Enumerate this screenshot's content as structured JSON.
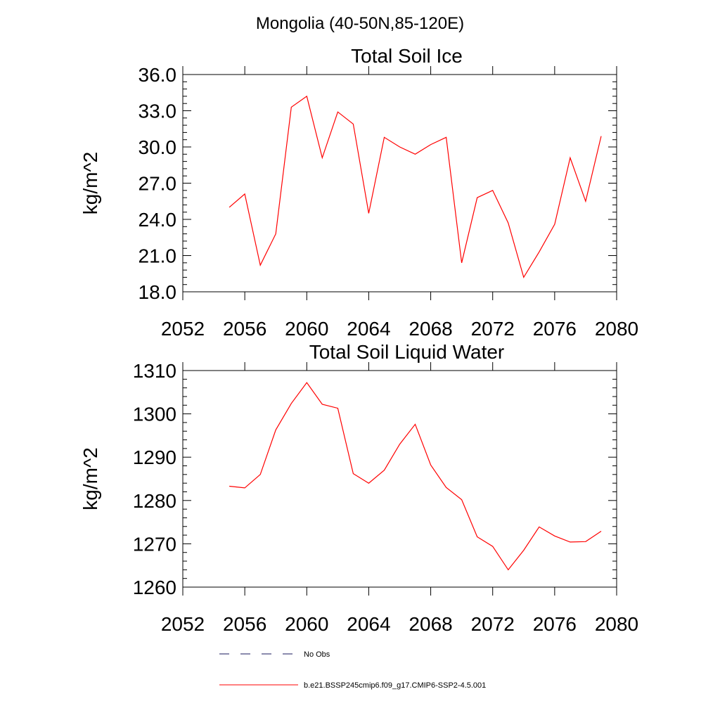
{
  "figure_title": "Mongolia (40-50N,85-120E)",
  "chart_data": [
    {
      "type": "line",
      "title": "Total Soil Ice",
      "xlabel": "",
      "ylabel": "kg/m^2",
      "xlim": [
        2052,
        2080
      ],
      "ylim": [
        18.0,
        36.0
      ],
      "xticks": [
        2052,
        2056,
        2060,
        2064,
        2068,
        2072,
        2076,
        2080
      ],
      "xtick_labels": [
        "2052",
        "2056",
        "2060",
        "2064",
        "2068",
        "2072",
        "2076",
        "2080"
      ],
      "yticks": [
        18,
        21,
        24,
        27,
        30,
        33,
        36
      ],
      "ytick_labels": [
        "18.0",
        "21.0",
        "24.0",
        "27.0",
        "30.0",
        "33.0",
        "36.0"
      ],
      "grid": false,
      "series": [
        {
          "name": "b.e21.BSSP245cmip6.f09_g17.CMIP6-SSP2-4.5.001",
          "color": "#ff0000",
          "x": [
            2055,
            2056,
            2057,
            2058,
            2059,
            2060,
            2061,
            2062,
            2063,
            2064,
            2065,
            2066,
            2067,
            2068,
            2069,
            2070,
            2071,
            2072,
            2073,
            2074,
            2075,
            2076,
            2077,
            2078,
            2079
          ],
          "y": [
            25.0,
            26.1,
            20.2,
            22.8,
            33.3,
            34.2,
            29.1,
            32.9,
            31.9,
            24.5,
            30.8,
            30.0,
            29.4,
            30.2,
            30.8,
            20.4,
            25.8,
            26.4,
            23.7,
            19.2,
            21.3,
            23.6,
            29.1,
            25.5,
            30.9
          ]
        }
      ]
    },
    {
      "type": "line",
      "title": "Total Soil Liquid Water",
      "xlabel": "",
      "ylabel": "kg/m^2",
      "xlim": [
        2052,
        2080
      ],
      "ylim": [
        1260,
        1310
      ],
      "xticks": [
        2052,
        2056,
        2060,
        2064,
        2068,
        2072,
        2076,
        2080
      ],
      "xtick_labels": [
        "2052",
        "2056",
        "2060",
        "2064",
        "2068",
        "2072",
        "2076",
        "2080"
      ],
      "yticks": [
        1260,
        1270,
        1280,
        1290,
        1300,
        1310
      ],
      "ytick_labels": [
        "1260",
        "1270",
        "1280",
        "1290",
        "1300",
        "1310"
      ],
      "grid": false,
      "series": [
        {
          "name": "b.e21.BSSP245cmip6.f09_g17.CMIP6-SSP2-4.5.001",
          "color": "#ff0000",
          "x": [
            2055,
            2056,
            2057,
            2058,
            2059,
            2060,
            2061,
            2062,
            2063,
            2064,
            2065,
            2066,
            2067,
            2068,
            2069,
            2070,
            2071,
            2072,
            2073,
            2074,
            2075,
            2076,
            2077,
            2078,
            2079
          ],
          "y": [
            1283.3,
            1282.9,
            1286.0,
            1296.3,
            1302.4,
            1307.2,
            1302.2,
            1301.3,
            1286.2,
            1284.0,
            1287.0,
            1293.0,
            1297.6,
            1288.2,
            1283.0,
            1280.2,
            1271.6,
            1269.4,
            1264.0,
            1268.5,
            1273.9,
            1271.8,
            1270.4,
            1270.5,
            1272.9
          ]
        }
      ]
    }
  ],
  "legend": {
    "placement": "bottom",
    "items": [
      {
        "label": "No Obs",
        "style": "dashed",
        "color": "#1a1a5e"
      },
      {
        "label": "b.e21.BSSP245cmip6.f09_g17.CMIP6-SSP2-4.5.001",
        "style": "solid",
        "color": "#ff0000"
      }
    ]
  }
}
